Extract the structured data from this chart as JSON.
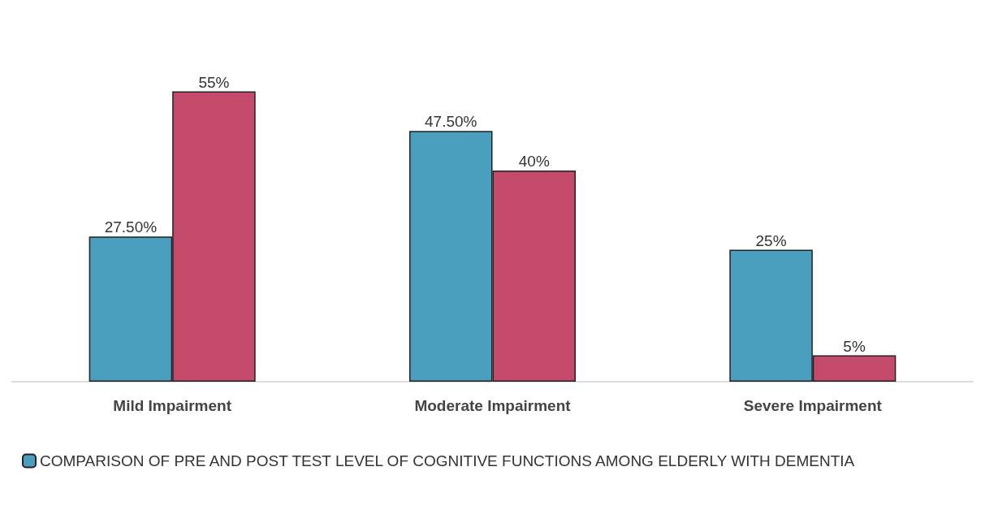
{
  "chart_data": {
    "type": "bar",
    "categories": [
      "Mild Impairment",
      "Moderate Impairment",
      "Severe Impairment"
    ],
    "series": [
      {
        "name": "COMPARISON OF PRE AND POST TEST LEVEL OF COGNITIVE FUNCTIONS AMONG ELDERLY WITH DEMENTIA",
        "color": "#4a9fbf",
        "values": [
          27.5,
          47.5,
          25
        ],
        "value_labels": [
          "27.50%",
          "47.50%",
          "25%"
        ]
      },
      {
        "color": "#c44a6c",
        "values": [
          55,
          40,
          5
        ],
        "value_labels": [
          "55%",
          "40%",
          "5%"
        ]
      }
    ],
    "legend": "bottom left",
    "grid": false
  }
}
